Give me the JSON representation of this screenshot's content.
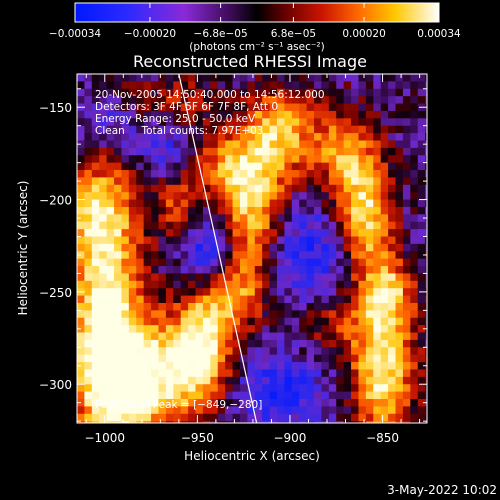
{
  "chart_data": {
    "type": "heatmap",
    "title": "Reconstructed RHESSI Image",
    "xlabel": "Heliocentric X (arcsec)",
    "ylabel": "Heliocentric Y (arcsec)",
    "xlim": [
      -1015,
      -826
    ],
    "ylim": [
      -321,
      -132
    ],
    "x_ticks": [
      -1000,
      -950,
      -900,
      -850
    ],
    "x_tick_labels": [
      "−1000",
      "−950",
      "−900",
      "−850"
    ],
    "y_ticks": [
      -150,
      -200,
      -250,
      -300
    ],
    "y_tick_labels": [
      "−150",
      "−200",
      "−250",
      "−300"
    ],
    "colorbar": {
      "ticks": [
        -0.00034,
        -0.0002,
        -6.8e-05,
        6.8e-05,
        0.0002,
        0.00034
      ],
      "tick_labels": [
        "−0.00034",
        "−0.00020",
        "−6.8e−05",
        "6.8e−05",
        "0.00020",
        "0.00034"
      ],
      "unit_label": "(photons cm⁻² s⁻¹ asec⁻²)",
      "range": [
        -0.00034,
        0.00034
      ]
    },
    "annotations": [
      "20-Nov-2005 14:50:40.000 to 14:56:12.000",
      "Detectors: 3F 4F 5F 6F 7F 8F, Att 0",
      "Energy Range: 25.0 - 50.0 keV",
      "Clean     Total counts: 7.97E+03"
    ],
    "peak_label": "Position of Peak = [−849,−280]",
    "peak_position": [
      -849,
      -280
    ],
    "limb_line": [
      [
        -960,
        -132
      ],
      [
        -918,
        -321
      ]
    ],
    "grid": false,
    "legend": "none"
  },
  "footer": {
    "date": "3-May-2022 10:02"
  },
  "colors": {
    "background": "#000000",
    "text": "#ffffff",
    "limb": "#ffffff"
  }
}
